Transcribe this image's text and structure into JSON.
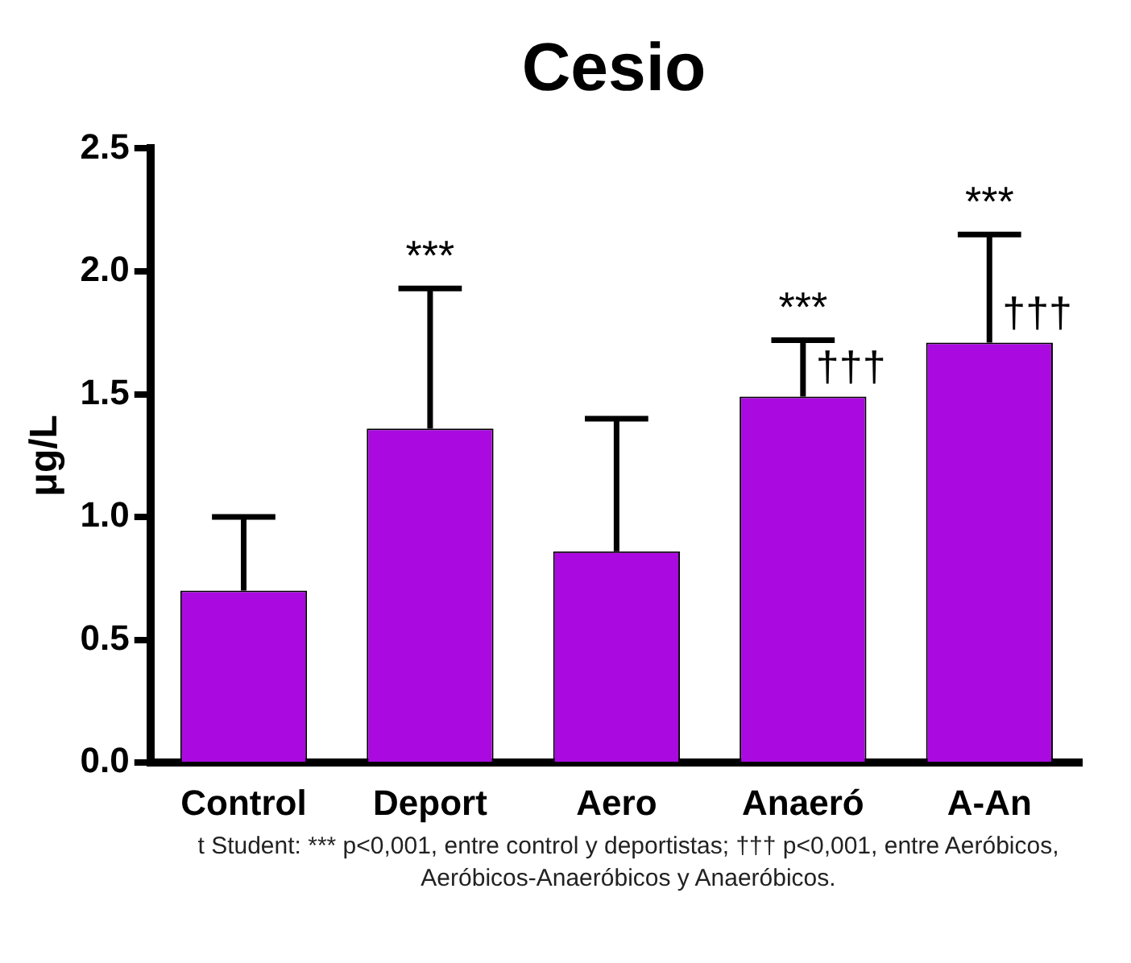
{
  "chart_data": {
    "type": "bar",
    "title": "Cesio",
    "ylabel": "μg/L",
    "categories": [
      "Control",
      "Deport",
      "Aero",
      "Anaeró",
      "A-An"
    ],
    "values": [
      0.7,
      1.36,
      0.86,
      1.49,
      1.71
    ],
    "errors": [
      [
        0.7,
        1.0
      ],
      [
        1.36,
        1.93
      ],
      [
        0.86,
        1.4
      ],
      [
        1.49,
        1.72
      ],
      [
        1.71,
        2.15
      ]
    ],
    "color": "#aa0ae0",
    "ylim": [
      0,
      2.5
    ],
    "yticks": [
      {
        "value": 0,
        "label": "0.0"
      },
      {
        "value": 0.5,
        "label": "0.5"
      },
      {
        "value": 1,
        "label": "1.0"
      },
      {
        "value": 1.5,
        "label": "1.5"
      },
      {
        "value": 2,
        "label": "2.0"
      },
      {
        "value": 2.5,
        "label": "2.5"
      }
    ],
    "grid": false,
    "legend": false,
    "annotations": [
      {
        "text": "***",
        "x": "Deport",
        "y": 1.93
      },
      {
        "text": "***",
        "x": "Anaeró",
        "y": 1.72
      },
      {
        "text": "†††",
        "x": "Anaeró",
        "y": 1.49
      },
      {
        "text": "***",
        "x": "A-An",
        "y": 2.15
      },
      {
        "text": "†††",
        "x": "A-An",
        "y": 1.71
      },
      "t Student: *** p<0,001, entre control y deportistas; ††† p<0,001, entre Aeróbicos, Aeróbicos-Anaeróbicos y Anaeróbicos."
    ]
  }
}
